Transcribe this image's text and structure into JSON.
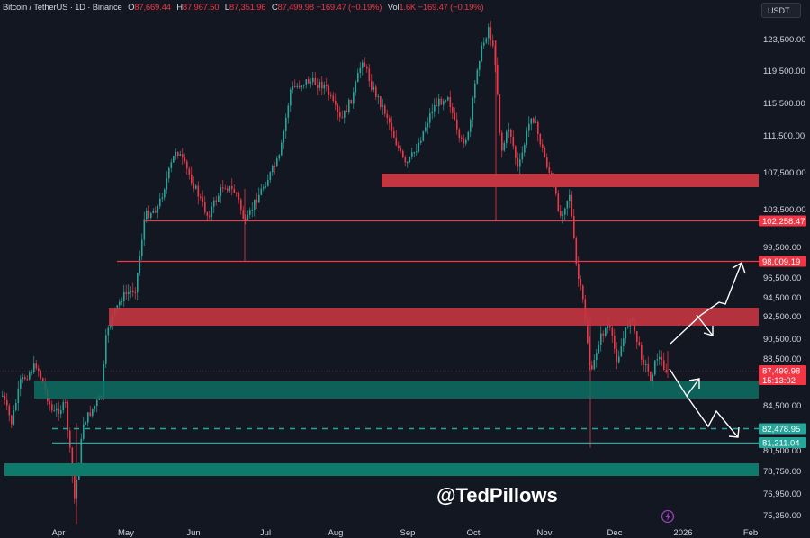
{
  "header": {
    "symbol": "Bitcoin / TetherUS · 1D · Binance",
    "open_label": "O",
    "open": "87,669.44",
    "high_label": "H",
    "high": "87,967.50",
    "low_label": "L",
    "low": "87,351.96",
    "close_label": "C",
    "close": "87,499.98",
    "change": "−169.47 (−0.19%)",
    "vol_label": "Vol",
    "vol": "1.6K",
    "vol_change": "−169.47 (−0.19%)"
  },
  "currency_button": "USDT",
  "watermark": "@TedPillows",
  "colors": {
    "background": "#131722",
    "up": "#26a69a",
    "down": "#f23645",
    "resistance_zone": "#c23541",
    "support_zone": "#0e6e62",
    "axis_text": "#d1d4dc",
    "arrows": "#ffffff"
  },
  "chart_data": {
    "type": "candlestick",
    "title": "Bitcoin / TetherUS · 1D · Binance",
    "xlabel": "",
    "ylabel": "USDT",
    "x_ticks": [
      "Apr",
      "May",
      "Jun",
      "Jul",
      "Aug",
      "Sep",
      "Oct",
      "Nov",
      "Dec",
      "2026",
      "Feb"
    ],
    "y_ticks": [
      "123,500.00",
      "119,500.00",
      "115,500.00",
      "111,500.00",
      "107,500.00",
      "103,500.00",
      "99,500.00",
      "96,500.00",
      "94,500.00",
      "92,500.00",
      "90,500.00",
      "88,500.00",
      "84,500.00",
      "80,500.00",
      "78,750.00",
      "76,950.00",
      "75,350.00"
    ],
    "ylim": [
      74500,
      126000
    ],
    "close_series_approx": [
      {
        "x": "Mar",
        "close": 84000
      },
      {
        "x": "Apr",
        "close": 82500
      },
      {
        "x": "Apr-mid",
        "close": 77000
      },
      {
        "x": "May",
        "close": 94500
      },
      {
        "x": "May-end",
        "close": 104000
      },
      {
        "x": "Jun",
        "close": 105000
      },
      {
        "x": "Jun-mid",
        "close": 106000
      },
      {
        "x": "Jul",
        "close": 107500
      },
      {
        "x": "Jul-mid",
        "close": 118000
      },
      {
        "x": "Aug",
        "close": 114000
      },
      {
        "x": "Aug-mid",
        "close": 123000
      },
      {
        "x": "Sep",
        "close": 108500
      },
      {
        "x": "Sep-mid",
        "close": 115500
      },
      {
        "x": "Oct",
        "close": 122500
      },
      {
        "x": "Oct-mid",
        "close": 111000
      },
      {
        "x": "Nov",
        "close": 106500
      },
      {
        "x": "Nov-mid",
        "close": 95000
      },
      {
        "x": "Nov-end",
        "close": 86000
      },
      {
        "x": "Dec",
        "close": 91500
      },
      {
        "x": "Dec-mid",
        "close": 87500
      }
    ],
    "horizontal_levels": [
      {
        "label": "102,258.47",
        "price": 102258.47,
        "type": "line",
        "color": "#f23645"
      },
      {
        "label": "98,009.19",
        "price": 98009.19,
        "type": "line",
        "color": "#f23645"
      },
      {
        "label": "87,499.98",
        "price": 87499.98,
        "type": "last-price",
        "timer": "15:13:02",
        "color": "#f23645"
      },
      {
        "label": "82,478.95",
        "price": 82478.95,
        "type": "dashed",
        "color": "#26a69a"
      },
      {
        "label": "81,211.04",
        "price": 81211.04,
        "type": "line",
        "color": "#26a69a"
      }
    ],
    "zones": [
      {
        "type": "resistance",
        "from": 106500,
        "to": 107900
      },
      {
        "type": "resistance",
        "from": 91800,
        "to": 93400
      },
      {
        "type": "support",
        "from": 85600,
        "to": 86700
      },
      {
        "type": "support",
        "from": 78300,
        "to": 79200
      }
    ],
    "annotations": [
      "bullish zig-zag arrow to ~98,000",
      "bearish pullback arrow to ~90,000",
      "bounce arrow from ~86,000",
      "bearish zig-zag arrow to ~81,200"
    ]
  }
}
